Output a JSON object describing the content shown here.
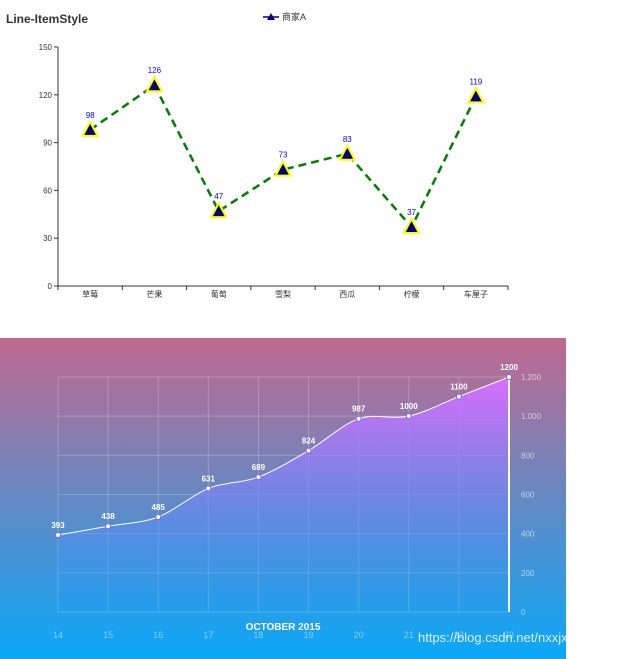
{
  "watermark": "https://blog.csdn.net/nxxjxw",
  "chart_data": [
    {
      "type": "line",
      "title": "Line-ItemStyle",
      "categories": [
        "草莓",
        "芒果",
        "葡萄",
        "雪梨",
        "西瓜",
        "柠檬",
        "车厘子"
      ],
      "series": [
        {
          "name": "商家A",
          "values": [
            98,
            126,
            47,
            73,
            83,
            37,
            119
          ],
          "line_color": "#008000",
          "line_style": "dashed",
          "marker": "triangle",
          "marker_fill": "#000080",
          "marker_border": "#ffff00",
          "label_color": "#0000ff"
        }
      ],
      "ylim": [
        0,
        150
      ],
      "yticks": [
        0,
        30,
        60,
        90,
        120,
        150
      ],
      "legend_position": "top-center",
      "grid": false
    },
    {
      "type": "area",
      "title": "OCTOBER 2015",
      "categories": [
        "14",
        "15",
        "16",
        "17",
        "18",
        "19",
        "20",
        "21",
        "22",
        "23"
      ],
      "series": [
        {
          "values": [
            393,
            438,
            485,
            631,
            689,
            824,
            987,
            1000,
            1100,
            1200
          ]
        }
      ],
      "ylim": [
        0,
        1200
      ],
      "yticks": [
        "0",
        "200",
        "400",
        "600",
        "800",
        "1,000",
        "1,200"
      ],
      "y_axis_side": "right",
      "grid": true,
      "background_gradient": [
        "#c0698e",
        "#0aa8f9"
      ],
      "area_gradient": [
        "#d96eff",
        "#1a9bf2"
      ]
    }
  ]
}
